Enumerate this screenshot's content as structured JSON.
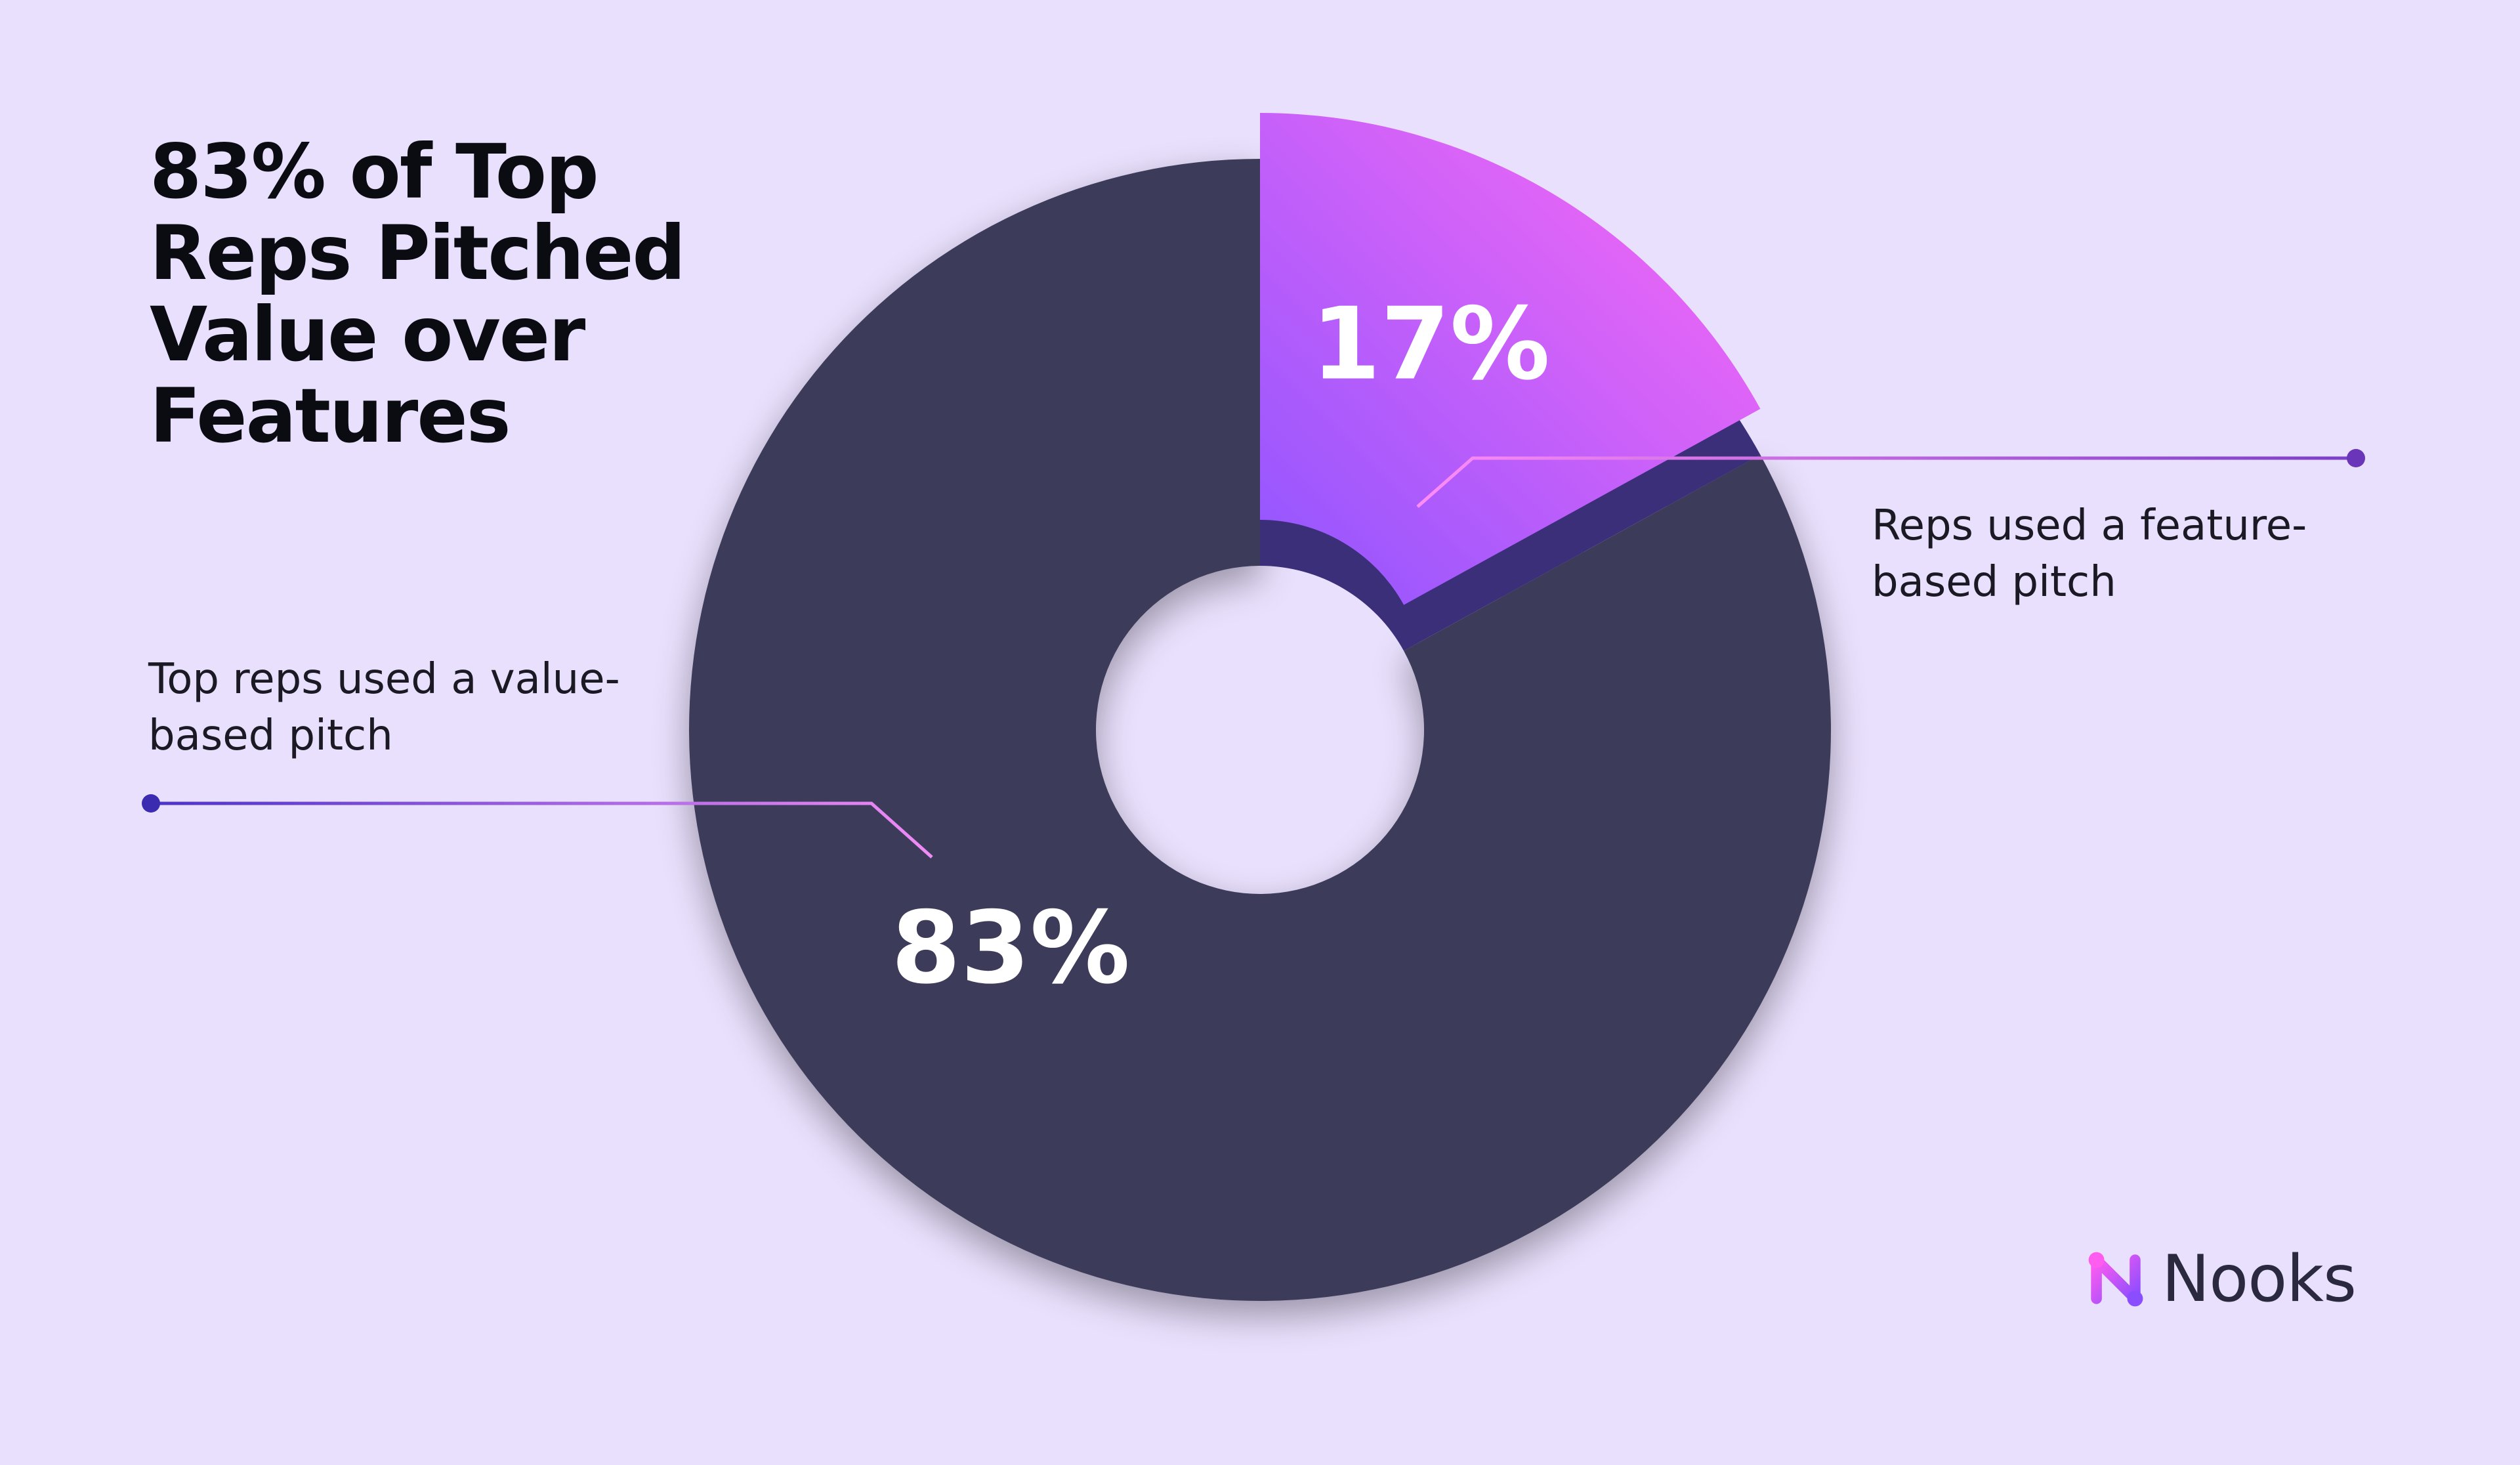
{
  "title": "83% of Top Reps Pitched Value over Features",
  "annotations": {
    "feature": "Reps used a feature-based pitch",
    "value": "Top reps used a value-based pitch"
  },
  "brand": {
    "name": "Nooks",
    "icon": "nooks-logo-icon"
  },
  "colors": {
    "background": "#e9e0fd",
    "donut": "#3d3a5a",
    "highlight_start": "#ff6bf4",
    "highlight_end": "#8e55ff",
    "highlight_side": "#3a2f78",
    "label_text": "#ffffff"
  },
  "chart_data": {
    "type": "pie",
    "style": "donut",
    "title": "83% of Top Reps Pitched Value over Features",
    "categories": [
      "Top reps used a value-based pitch",
      "Reps used a feature-based pitch"
    ],
    "values": [
      83,
      17
    ],
    "labels": [
      "83%",
      "17%"
    ],
    "highlighted_slice": 1,
    "legend": "none"
  }
}
